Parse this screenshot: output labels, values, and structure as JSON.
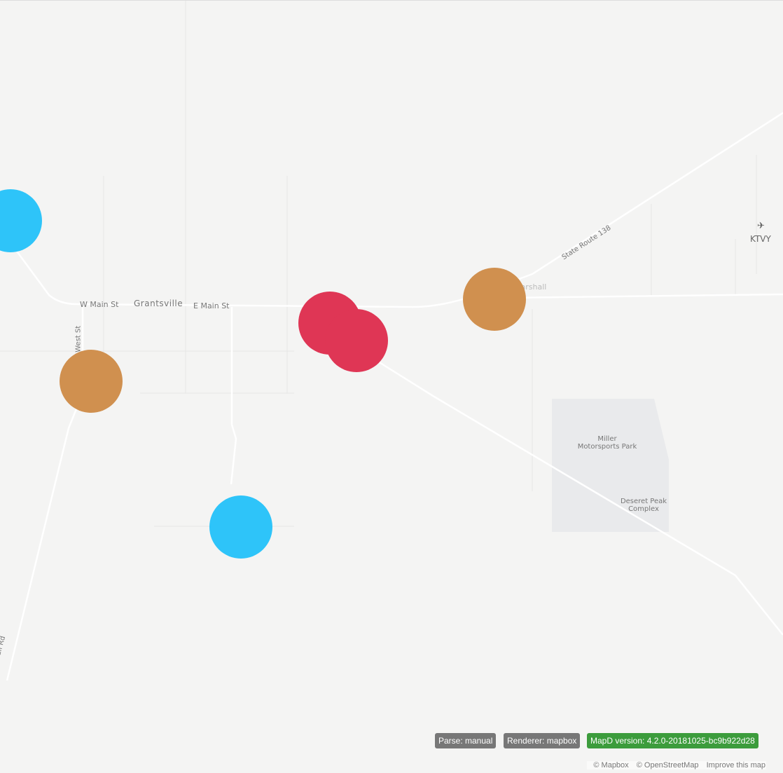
{
  "map": {
    "place_labels": {
      "grantsville": "Grantsville",
      "marshall": "Marshall",
      "airport": "KTVY",
      "park": "Miller\nMotorsports Park",
      "complex": "Deseret Peak\nComplex"
    },
    "road_labels": {
      "w_main": "W Main St",
      "e_main": "E Main St",
      "s_west": "S West St",
      "sr138": "State Route 138",
      "trail": "ion Trail Rd"
    },
    "points": [
      {
        "color": "#2ec4f9",
        "category": "blue"
      },
      {
        "color": "#d0904f",
        "category": "orange"
      },
      {
        "color": "#df3655",
        "category": "red"
      },
      {
        "color": "#df3655",
        "category": "red"
      },
      {
        "color": "#d0904f",
        "category": "orange"
      },
      {
        "color": "#2ec4f9",
        "category": "blue"
      }
    ]
  },
  "badges": {
    "parse": "Parse: manual",
    "renderer": "Renderer: mapbox",
    "version": "MapD version: 4.2.0-20181025-bc9b922d28",
    "gray": "#777777",
    "green": "#3c9c3c"
  },
  "attribution": {
    "mapbox": "© Mapbox",
    "osm": "© OpenStreetMap",
    "improve": "Improve this map"
  }
}
